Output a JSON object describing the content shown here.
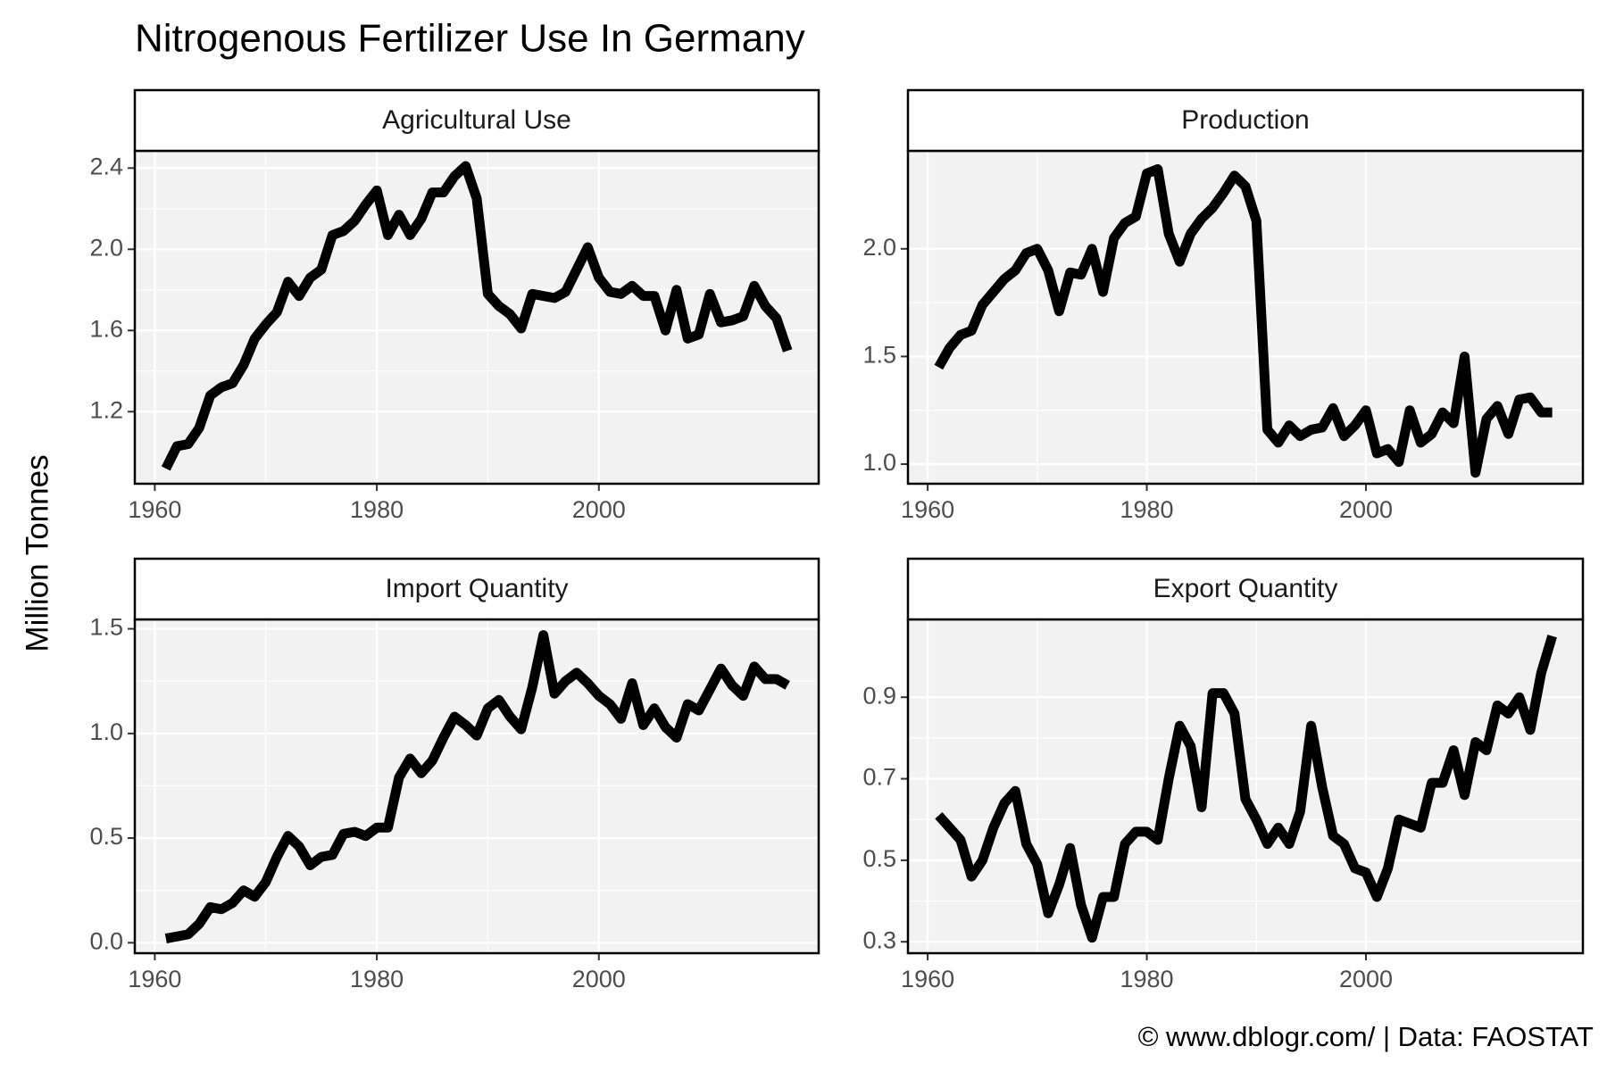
{
  "title": "Nitrogenous Fertilizer Use In Germany",
  "y_label": "Million Tonnes",
  "caption": "© www.dblogr.com/ | Data: FAOSTAT",
  "chart_data": [
    {
      "type": "line",
      "title": "Agricultural Use",
      "color": "#000000",
      "grid": true,
      "x": [
        1961,
        1962,
        1963,
        1964,
        1965,
        1966,
        1967,
        1968,
        1969,
        1970,
        1971,
        1972,
        1973,
        1974,
        1975,
        1976,
        1977,
        1978,
        1979,
        1980,
        1981,
        1982,
        1983,
        1984,
        1985,
        1986,
        1987,
        1988,
        1989,
        1990,
        1991,
        1992,
        1993,
        1994,
        1995,
        1996,
        1997,
        1998,
        1999,
        2000,
        2001,
        2002,
        2003,
        2004,
        2005,
        2006,
        2007,
        2008,
        2009,
        2010,
        2011,
        2012,
        2013,
        2014,
        2015,
        2016,
        2017
      ],
      "values": [
        0.92,
        1.03,
        1.04,
        1.12,
        1.28,
        1.32,
        1.34,
        1.43,
        1.56,
        1.63,
        1.69,
        1.84,
        1.77,
        1.86,
        1.9,
        2.07,
        2.09,
        2.14,
        2.22,
        2.29,
        2.07,
        2.17,
        2.07,
        2.15,
        2.28,
        2.28,
        2.36,
        2.41,
        2.25,
        1.78,
        1.72,
        1.68,
        1.61,
        1.78,
        1.77,
        1.76,
        1.79,
        1.9,
        2.01,
        1.86,
        1.79,
        1.78,
        1.82,
        1.77,
        1.77,
        1.6,
        1.8,
        1.56,
        1.58,
        1.78,
        1.64,
        1.65,
        1.67,
        1.82,
        1.72,
        1.66,
        1.5
      ],
      "xlim": [
        1958.2,
        2019.8
      ],
      "xticks": [
        1960,
        1980,
        2000
      ],
      "ylim": [
        0.845,
        2.485
      ],
      "yticks": [
        {
          "value": 1.2,
          "label": "1.2"
        },
        {
          "value": 1.6,
          "label": "1.6"
        },
        {
          "value": 2.0,
          "label": "2.0"
        },
        {
          "value": 2.4,
          "label": "2.4"
        }
      ]
    },
    {
      "type": "line",
      "title": "Production",
      "color": "#000000",
      "grid": true,
      "x": [
        1961,
        1962,
        1963,
        1964,
        1965,
        1966,
        1967,
        1968,
        1969,
        1970,
        1971,
        1972,
        1973,
        1974,
        1975,
        1976,
        1977,
        1978,
        1979,
        1980,
        1981,
        1982,
        1983,
        1984,
        1985,
        1986,
        1987,
        1988,
        1989,
        1990,
        1991,
        1992,
        1993,
        1994,
        1995,
        1996,
        1997,
        1998,
        1999,
        2000,
        2001,
        2002,
        2003,
        2004,
        2005,
        2006,
        2007,
        2008,
        2009,
        2010,
        2011,
        2012,
        2013,
        2014,
        2015,
        2016,
        2017
      ],
      "values": [
        1.45,
        1.54,
        1.6,
        1.62,
        1.74,
        1.8,
        1.86,
        1.9,
        1.98,
        2.0,
        1.9,
        1.71,
        1.89,
        1.88,
        2.0,
        1.8,
        2.05,
        2.12,
        2.15,
        2.35,
        2.37,
        2.07,
        1.94,
        2.07,
        2.14,
        2.19,
        2.26,
        2.34,
        2.29,
        2.13,
        1.16,
        1.1,
        1.18,
        1.13,
        1.16,
        1.17,
        1.26,
        1.13,
        1.18,
        1.25,
        1.05,
        1.07,
        1.01,
        1.25,
        1.1,
        1.14,
        1.24,
        1.19,
        1.5,
        0.96,
        1.21,
        1.27,
        1.14,
        1.3,
        1.31,
        1.24,
        1.24
      ],
      "xlim": [
        1958.2,
        2019.8
      ],
      "xticks": [
        1960,
        1980,
        2000
      ],
      "ylim": [
        0.909,
        2.455
      ],
      "yticks": [
        {
          "value": 1.0,
          "label": "1.0"
        },
        1.5,
        {
          "value": 2.0,
          "label": "2.0"
        }
      ]
    },
    {
      "type": "line",
      "title": "Import Quantity",
      "color": "#000000",
      "grid": true,
      "x": [
        1961,
        1962,
        1963,
        1964,
        1965,
        1966,
        1967,
        1968,
        1969,
        1970,
        1971,
        1972,
        1973,
        1974,
        1975,
        1976,
        1977,
        1978,
        1979,
        1980,
        1981,
        1982,
        1983,
        1984,
        1985,
        1986,
        1987,
        1988,
        1989,
        1990,
        1991,
        1992,
        1993,
        1994,
        1995,
        1996,
        1997,
        1998,
        1999,
        2000,
        2001,
        2002,
        2003,
        2004,
        2005,
        2006,
        2007,
        2008,
        2009,
        2010,
        2011,
        2012,
        2013,
        2014,
        2015,
        2016,
        2017
      ],
      "values": [
        0.02,
        0.03,
        0.04,
        0.09,
        0.17,
        0.16,
        0.19,
        0.25,
        0.22,
        0.29,
        0.41,
        0.51,
        0.46,
        0.37,
        0.41,
        0.42,
        0.52,
        0.53,
        0.51,
        0.55,
        0.55,
        0.79,
        0.88,
        0.81,
        0.87,
        0.98,
        1.08,
        1.04,
        0.99,
        1.12,
        1.16,
        1.08,
        1.02,
        1.22,
        1.47,
        1.19,
        1.25,
        1.29,
        1.24,
        1.18,
        1.14,
        1.07,
        1.24,
        1.04,
        1.12,
        1.03,
        0.98,
        1.14,
        1.11,
        1.21,
        1.31,
        1.23,
        1.18,
        1.32,
        1.26,
        1.26,
        1.23
      ],
      "xlim": [
        1958.2,
        2019.8
      ],
      "xticks": [
        1960,
        1980,
        2000
      ],
      "ylim": [
        -0.05,
        1.545
      ],
      "yticks": [
        {
          "value": 0.0,
          "label": "0.0"
        },
        0.5,
        {
          "value": 1.0,
          "label": "1.0"
        },
        1.5
      ]
    },
    {
      "type": "line",
      "title": "Export Quantity",
      "color": "#000000",
      "grid": true,
      "x": [
        1961,
        1962,
        1963,
        1964,
        1965,
        1966,
        1967,
        1968,
        1969,
        1970,
        1971,
        1972,
        1973,
        1974,
        1975,
        1976,
        1977,
        1978,
        1979,
        1980,
        1981,
        1982,
        1983,
        1984,
        1985,
        1986,
        1987,
        1988,
        1989,
        1990,
        1991,
        1992,
        1993,
        1994,
        1995,
        1996,
        1997,
        1998,
        1999,
        2000,
        2001,
        2002,
        2003,
        2004,
        2005,
        2006,
        2007,
        2008,
        2009,
        2010,
        2011,
        2012,
        2013,
        2014,
        2015,
        2016,
        2017
      ],
      "values": [
        0.61,
        0.58,
        0.55,
        0.46,
        0.5,
        0.58,
        0.64,
        0.67,
        0.54,
        0.49,
        0.37,
        0.44,
        0.53,
        0.39,
        0.31,
        0.41,
        0.41,
        0.54,
        0.57,
        0.57,
        0.55,
        0.7,
        0.83,
        0.78,
        0.63,
        0.91,
        0.91,
        0.86,
        0.65,
        0.6,
        0.54,
        0.58,
        0.54,
        0.62,
        0.83,
        0.68,
        0.56,
        0.54,
        0.48,
        0.47,
        0.41,
        0.48,
        0.6,
        0.59,
        0.58,
        0.69,
        0.69,
        0.77,
        0.66,
        0.79,
        0.77,
        0.88,
        0.86,
        0.9,
        0.82,
        0.96,
        1.05
      ],
      "xlim": [
        1958.2,
        2019.8
      ],
      "xticks": [
        1960,
        1980,
        2000
      ],
      "ylim": [
        0.272,
        1.091
      ],
      "yticks": [
        0.3,
        0.5,
        0.7,
        0.9
      ]
    }
  ]
}
